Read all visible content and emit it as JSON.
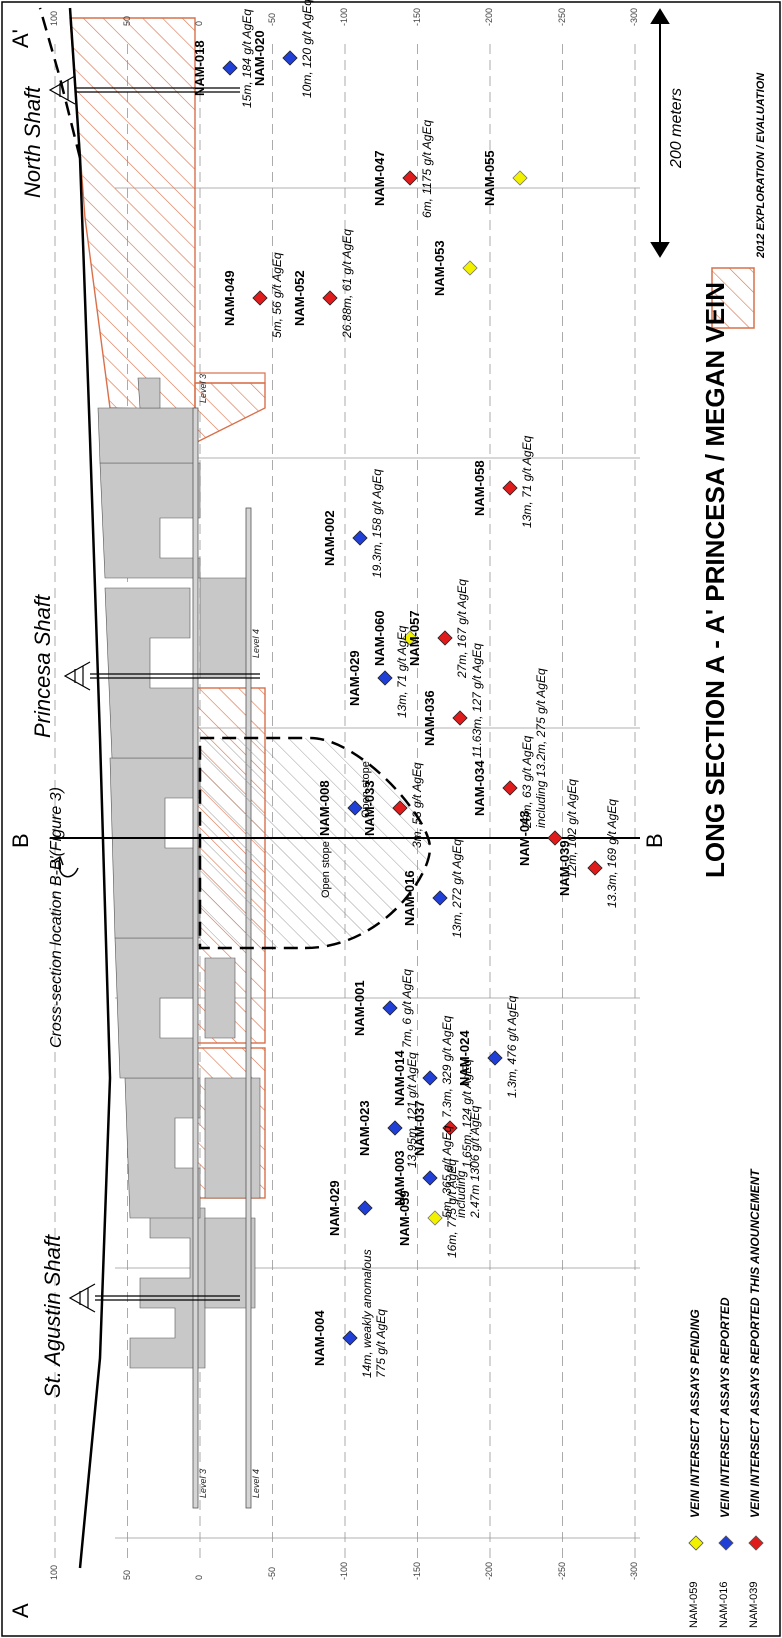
{
  "title": "LONG SECTION A - A' PRINCESA / MEGAN VEIN",
  "section_labels": {
    "a": "A",
    "a_prime": "A'",
    "b_top": "B",
    "b_bottom": "B"
  },
  "cross_section_note": "Cross-section location B-B'(Figure 3)",
  "shafts": [
    "St. Agustin Shaft",
    "Princesa Shaft",
    "North Shaft"
  ],
  "levels": [
    "Level 3",
    "Level 4",
    "Level 3",
    "Level 4"
  ],
  "open_stope": [
    "Open stope",
    "Open stope"
  ],
  "scale_label": "200 meters",
  "elevation_ticks": [
    "100",
    "50",
    "0",
    "-50",
    "-100",
    "-150",
    "-200",
    "-250",
    "-300"
  ],
  "legend": {
    "pending": {
      "code": "NAM-059",
      "text": "VEIN INTERSECT ASSAYS PENDING",
      "color": "#f2f200"
    },
    "reported": {
      "code": "NAM-016",
      "text": "VEIN INTERSECT ASSAYS REPORTED",
      "color": "#1f3fd6"
    },
    "this": {
      "code": "NAM-039",
      "text": "VEIN INTERSECT ASSAYS REPORTED THIS ANOUNCEMENT",
      "color": "#e01b1b"
    },
    "exploration": "2012 EXPLORATION / EVALUATION"
  },
  "colors": {
    "hatch": "#d9704a",
    "workings": "#c8c8c8"
  },
  "holes": [
    {
      "id": "NAM-004",
      "status": "reported",
      "lines": [
        "14m, weakly anomalous",
        "775 g/t AgEq"
      ]
    },
    {
      "id": "NAM-059",
      "status": "pending",
      "lines": [
        "16m, 775 g/t AgEq"
      ]
    },
    {
      "id": "NAM-029",
      "status": "reported",
      "lines": []
    },
    {
      "id": "NAM-037",
      "status": "this",
      "lines": [
        "1.65m, 124 g/t AgEq"
      ]
    },
    {
      "id": "NAM-003",
      "status": "reported",
      "lines": [
        "5m, 365 g/t AgEq",
        "including",
        "2.47m 1306 g/t AgEq"
      ]
    },
    {
      "id": "NAM-023",
      "status": "reported",
      "lines": [
        "13.95m, 121 g/t AgEq"
      ]
    },
    {
      "id": "NAM-014",
      "status": "reported",
      "lines": [
        "7.3m, 329 g/t AgEq"
      ]
    },
    {
      "id": "NAM-024",
      "status": "reported",
      "lines": [
        "1.3m, 476 g/t AgEq"
      ]
    },
    {
      "id": "NAM-001",
      "status": "reported",
      "lines": [
        "7m, 6 g/t AgEq"
      ]
    },
    {
      "id": "NAM-016",
      "status": "reported",
      "lines": [
        "13m, 272 g/t AgEq"
      ]
    },
    {
      "id": "NAM-039",
      "status": "this",
      "lines": [
        "13.3m, 169 g/t AgEq"
      ]
    },
    {
      "id": "NAM-043",
      "status": "this",
      "lines": [
        "12m, 102 g/t AgEq"
      ]
    },
    {
      "id": "NAM-008",
      "status": "reported",
      "lines": []
    },
    {
      "id": "NAM-033",
      "status": "this",
      "lines": [
        "3m, 53 g/t AgEq"
      ]
    },
    {
      "id": "NAM-034",
      "status": "this",
      "lines": [
        "20m, 63 g/t AgEq",
        "including 13.2m, 275 g/t AgEq"
      ]
    },
    {
      "id": "NAM-036",
      "status": "this",
      "lines": [
        "11.63m, 127 g/t AgEq"
      ]
    },
    {
      "id": "NAM-029",
      "status": "reported",
      "lines": [
        "13m, 71 g/t AgEq"
      ]
    },
    {
      "id": "NAM-057",
      "status": "this",
      "lines": [
        "27m, 167 g/t AgEq"
      ]
    },
    {
      "id": "NAM-060",
      "status": "pending",
      "lines": []
    },
    {
      "id": "NAM-002",
      "status": "reported",
      "lines": [
        "19.3m, 158 g/t AgEq"
      ]
    },
    {
      "id": "NAM-058",
      "status": "this",
      "lines": [
        "13m, 71 g/t AgEq"
      ]
    },
    {
      "id": "NAM-049",
      "status": "this",
      "lines": [
        "5m, 56 g/t AgEq"
      ]
    },
    {
      "id": "NAM-052",
      "status": "this",
      "lines": [
        "26.88m, 61 g/t AgEq"
      ]
    },
    {
      "id": "NAM-053",
      "status": "pending",
      "lines": []
    },
    {
      "id": "NAM-018",
      "status": "reported",
      "lines": [
        "15m, 184 g/t AgEq"
      ]
    },
    {
      "id": "NAM-020",
      "status": "reported",
      "lines": [
        "10m, 120 g/t AgEq"
      ]
    },
    {
      "id": "NAM-047",
      "status": "this",
      "lines": [
        "6m, 1175 g/t AgEq"
      ]
    },
    {
      "id": "NAM-055",
      "status": "pending",
      "lines": []
    }
  ]
}
